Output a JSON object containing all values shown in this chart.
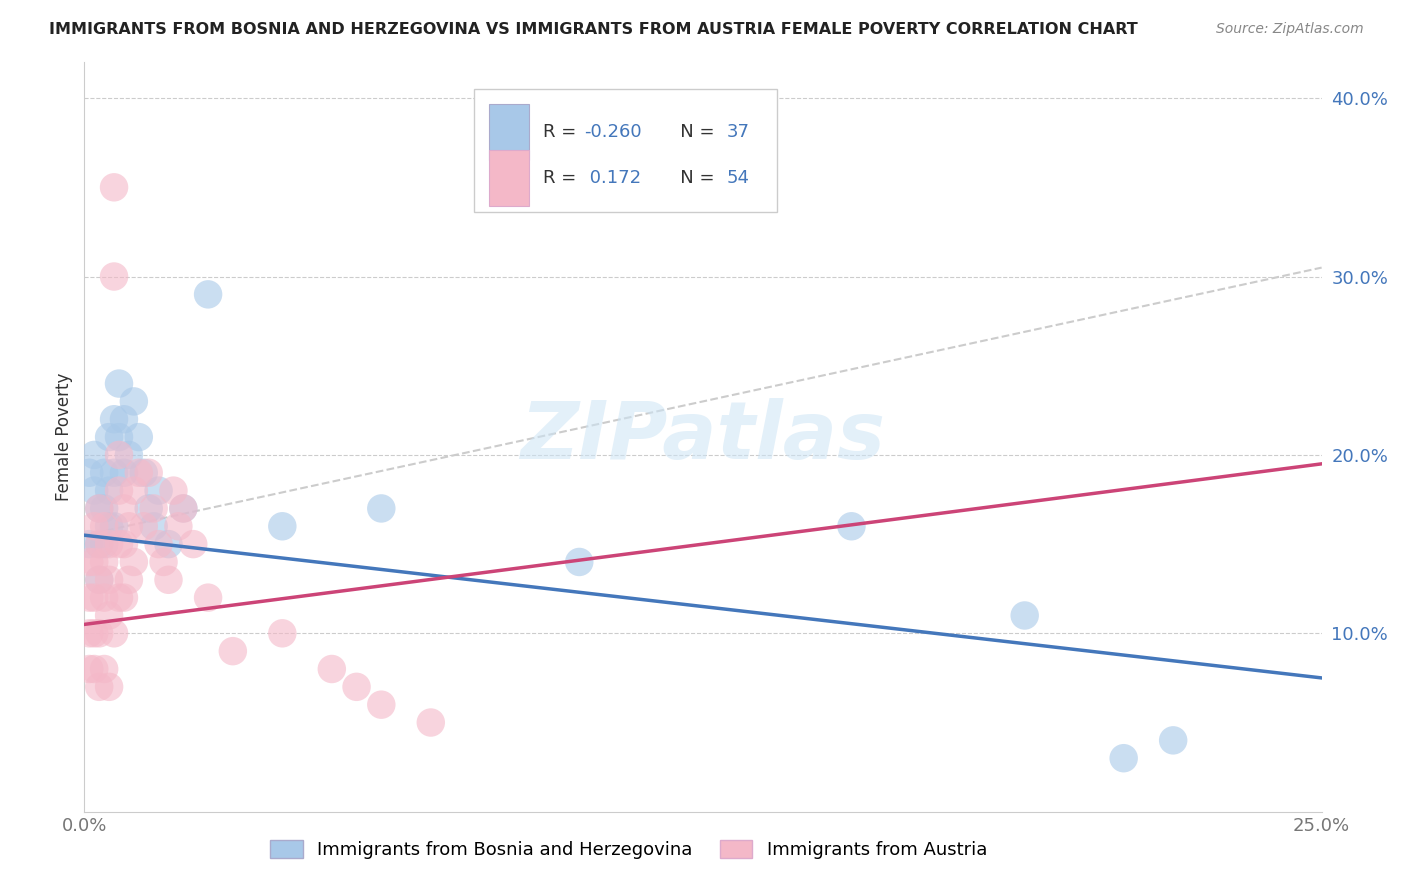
{
  "title": "IMMIGRANTS FROM BOSNIA AND HERZEGOVINA VS IMMIGRANTS FROM AUSTRIA FEMALE POVERTY CORRELATION CHART",
  "source": "Source: ZipAtlas.com",
  "ylabel": "Female Poverty",
  "xlim": [
    0.0,
    0.25
  ],
  "ylim": [
    0.0,
    0.42
  ],
  "legend_labels": [
    "Immigrants from Bosnia and Herzegovina",
    "Immigrants from Austria"
  ],
  "color_bosnia": "#a8c8e8",
  "color_austria": "#f4b8c8",
  "color_bosnia_line": "#4477bb",
  "color_austria_line": "#cc4477",
  "color_rn_text": "#4477bb",
  "R_bosnia": -0.26,
  "N_bosnia": 37,
  "R_austria": 0.172,
  "N_austria": 54,
  "watermark": "ZIPatlas",
  "bos_trend": [
    0.0,
    0.25,
    0.155,
    0.075
  ],
  "aut_trend": [
    0.0,
    0.25,
    0.105,
    0.195
  ],
  "dash_line": [
    0.0,
    0.25,
    0.155,
    0.305
  ],
  "bosnia_x": [
    0.001,
    0.001,
    0.002,
    0.002,
    0.003,
    0.003,
    0.003,
    0.004,
    0.004,
    0.004,
    0.005,
    0.005,
    0.005,
    0.006,
    0.006,
    0.006,
    0.007,
    0.007,
    0.008,
    0.008,
    0.009,
    0.01,
    0.011,
    0.012,
    0.013,
    0.014,
    0.015,
    0.017,
    0.02,
    0.025,
    0.04,
    0.06,
    0.1,
    0.155,
    0.19,
    0.21,
    0.22
  ],
  "bosnia_y": [
    0.15,
    0.19,
    0.18,
    0.2,
    0.17,
    0.15,
    0.13,
    0.19,
    0.17,
    0.15,
    0.21,
    0.18,
    0.16,
    0.22,
    0.19,
    0.16,
    0.24,
    0.21,
    0.22,
    0.19,
    0.2,
    0.23,
    0.21,
    0.19,
    0.17,
    0.16,
    0.18,
    0.15,
    0.17,
    0.29,
    0.16,
    0.17,
    0.14,
    0.16,
    0.11,
    0.03,
    0.04
  ],
  "austria_x": [
    0.001,
    0.001,
    0.001,
    0.001,
    0.002,
    0.002,
    0.002,
    0.002,
    0.002,
    0.003,
    0.003,
    0.003,
    0.003,
    0.003,
    0.004,
    0.004,
    0.004,
    0.004,
    0.005,
    0.005,
    0.005,
    0.005,
    0.006,
    0.006,
    0.006,
    0.007,
    0.007,
    0.007,
    0.007,
    0.008,
    0.008,
    0.008,
    0.009,
    0.009,
    0.01,
    0.01,
    0.011,
    0.012,
    0.013,
    0.014,
    0.015,
    0.016,
    0.017,
    0.018,
    0.019,
    0.02,
    0.022,
    0.025,
    0.03,
    0.04,
    0.05,
    0.055,
    0.06,
    0.07
  ],
  "austria_y": [
    0.14,
    0.12,
    0.1,
    0.08,
    0.16,
    0.14,
    0.12,
    0.1,
    0.08,
    0.17,
    0.15,
    0.13,
    0.1,
    0.07,
    0.16,
    0.14,
    0.12,
    0.08,
    0.15,
    0.13,
    0.11,
    0.07,
    0.35,
    0.3,
    0.1,
    0.2,
    0.18,
    0.15,
    0.12,
    0.17,
    0.15,
    0.12,
    0.16,
    0.13,
    0.18,
    0.14,
    0.19,
    0.16,
    0.19,
    0.17,
    0.15,
    0.14,
    0.13,
    0.18,
    0.16,
    0.17,
    0.15,
    0.12,
    0.09,
    0.1,
    0.08,
    0.07,
    0.06,
    0.05
  ]
}
